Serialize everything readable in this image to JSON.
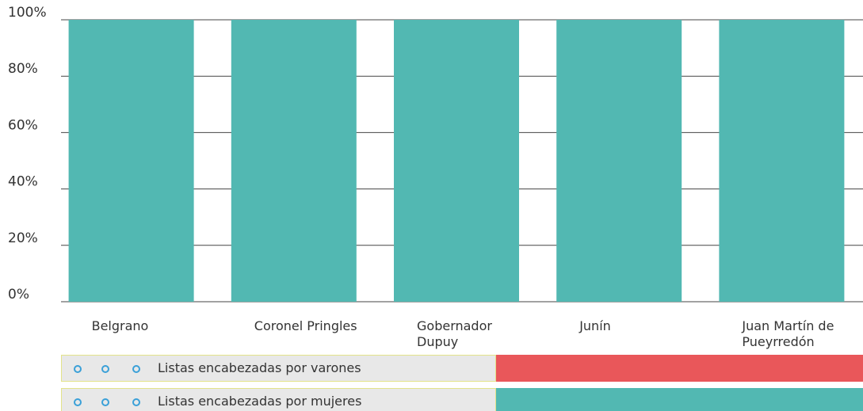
{
  "chart_data": {
    "type": "bar",
    "stacked": true,
    "categories": [
      "Belgrano",
      "Coronel Pringles",
      "Gobernador Dupuy",
      "Junín",
      "Juan Martín de Pueyrredón"
    ],
    "series": [
      {
        "name": "Listas encabezadas por varones",
        "color": "#e9575a",
        "values": [
          0,
          0,
          0,
          0,
          0
        ]
      },
      {
        "name": "Listas encabezadas por mujeres",
        "color": "#52b8b2",
        "values": [
          100,
          100,
          100,
          100,
          100
        ]
      }
    ],
    "ylim": [
      0,
      100
    ],
    "yticks": [
      {
        "value": 0,
        "label": "0%"
      },
      {
        "value": 20,
        "label": "20%"
      },
      {
        "value": 40,
        "label": "40%"
      },
      {
        "value": 60,
        "label": "60%"
      },
      {
        "value": 80,
        "label": "80%"
      },
      {
        "value": 100,
        "label": "100%"
      }
    ],
    "grid": true
  }
}
